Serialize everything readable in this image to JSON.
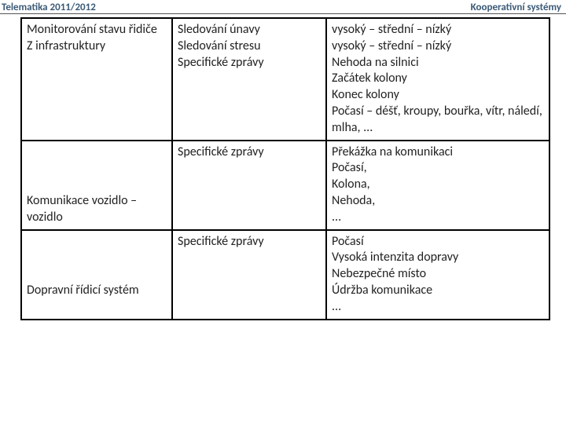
{
  "header": {
    "left": "Telematika 2011/2012",
    "right": "Kooperativní systémy"
  },
  "table": {
    "rows": [
      {
        "col1": "Monitorování stavu řidiče\nZ infrastruktury",
        "col2": "Sledování únavy\nSledování stresu\nSpecifické zprávy",
        "col3": "vysoký – střední – nízký\nvysoký – střední – nízký\nNehoda na silnici\nZačátek kolony\nKonec kolony\nPočasí – déšť, kroupy, bouřka, vítr, náledí, mlha, ..."
      },
      {
        "col1": "\n\n\nKomunikace vozidlo – vozidlo",
        "col2": "Specifické zprávy",
        "col3": "Překážka na komunikaci\nPočasí,\nKolona,\nNehoda,\n..."
      },
      {
        "col1": "\n\n\nDopravní řídicí systém",
        "col2": "Specifické zprávy",
        "col3": "Počasí\nVysoká intenzita dopravy\nNebezpečné místo\nÚdržba komunikace\n..."
      }
    ]
  },
  "colors": {
    "header_text": "#3b5a77",
    "cell_text": "#222222",
    "border": "#000000",
    "background": "#ffffff"
  },
  "fonts": {
    "header_size_pt": 10,
    "cell_size_pt": 12,
    "header_weight": "bold",
    "cell_weight": "normal"
  }
}
